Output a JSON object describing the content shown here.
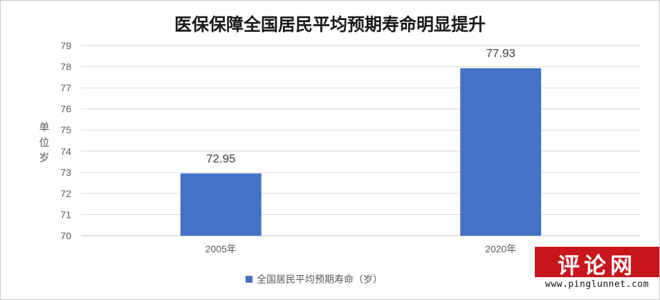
{
  "chart_data": {
    "type": "bar",
    "title": "医保保障全国居民平均预期寿命明显提升",
    "ylabel": "单位岁",
    "categories": [
      "2005年",
      "2020年"
    ],
    "series": [
      {
        "name": "全国居民平均预期寿命（岁）",
        "values": [
          72.95,
          77.93
        ],
        "color": "#4472c4"
      }
    ],
    "data_labels": [
      "72.95",
      "77.93"
    ],
    "ylim": [
      70,
      79
    ],
    "yticks": [
      70,
      71,
      72,
      73,
      74,
      75,
      76,
      77,
      78,
      79
    ],
    "grid": true,
    "legend": "bottom"
  },
  "watermark": {
    "text": "评论网",
    "url": "www.pinglunnet.com",
    "color": "#c9161d"
  }
}
